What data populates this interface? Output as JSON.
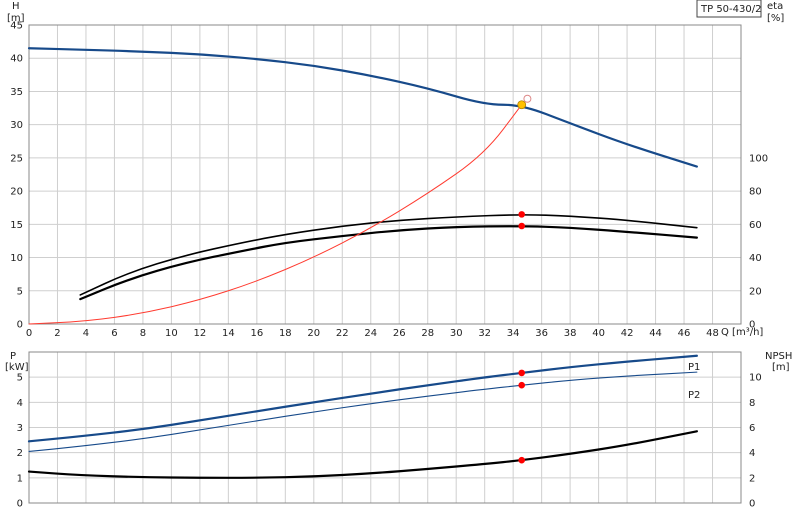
{
  "colors": {
    "head": "#174a8a",
    "efficiency": "#000000",
    "efficiency_upper": "#000000",
    "system": "#ff3b30",
    "power": "#174a8a",
    "npsh": "#000000",
    "grid": "#cfcfcf",
    "operating_point": "#ff0000",
    "system_point": "#ffc000"
  },
  "chart_data": [
    {
      "id": "top",
      "type": "line",
      "title": "TP 50-430/2",
      "xlabel": "Q [m³/h]",
      "ylabel_left_line1": "H",
      "ylabel_left_line2": "[m]",
      "ylabel_right_line1": "eta",
      "ylabel_right_line2": "[%]",
      "xlim": [
        0,
        50
      ],
      "xticks": [
        0,
        2,
        4,
        6,
        8,
        10,
        12,
        14,
        16,
        18,
        20,
        22,
        24,
        26,
        28,
        30,
        32,
        34,
        36,
        38,
        40,
        42,
        44,
        46,
        48
      ],
      "ylim_left": [
        0,
        45
      ],
      "yticks_left": [
        0,
        5,
        10,
        15,
        20,
        25,
        30,
        35,
        40,
        45
      ],
      "ylim_right": [
        0,
        180
      ],
      "yticks_right": [
        0,
        20,
        40,
        60,
        80,
        100
      ],
      "grid": true,
      "series": [
        {
          "key": "head",
          "axis": "left",
          "width": 2.2,
          "x": [
            0,
            3.6,
            8,
            12,
            16,
            20,
            24,
            28,
            32,
            34.6,
            38,
            42,
            46.9
          ],
          "y": [
            41.5,
            41.3,
            41.0,
            40.6,
            39.9,
            38.9,
            37.4,
            35.5,
            33.0,
            33.0,
            30.2,
            27.0,
            23.7
          ]
        },
        {
          "key": "efficiency",
          "axis": "right",
          "width": 2.2,
          "x": [
            3.6,
            7,
            11,
            15,
            18,
            22,
            26,
            30,
            34.6,
            38,
            42,
            46.9
          ],
          "y": [
            15,
            27,
            37,
            44,
            49,
            53,
            56.5,
            58.5,
            59,
            58,
            55.5,
            52
          ]
        },
        {
          "key": "efficiency_upper",
          "axis": "right",
          "width": 1.6,
          "x": [
            3.6,
            7,
            11,
            15,
            18,
            22,
            26,
            30,
            34.6,
            38,
            42,
            46.9
          ],
          "y": [
            17.5,
            31,
            41.5,
            49,
            54,
            59,
            62.5,
            64.5,
            66,
            65,
            62.5,
            58
          ]
        },
        {
          "key": "system",
          "axis": "left",
          "width": 1,
          "x": [
            0,
            4,
            8,
            12,
            16,
            20,
            24,
            28,
            32,
            34.6
          ],
          "y": [
            0,
            0.4,
            1.6,
            3.6,
            6.4,
            10.0,
            14.4,
            19.6,
            25.6,
            33.0
          ]
        }
      ],
      "points": [
        {
          "key": "operating_point",
          "axis": "right",
          "x": 34.6,
          "y": 66
        },
        {
          "key": "operating_point",
          "axis": "right",
          "x": 34.6,
          "y": 59
        },
        {
          "key": "system_point",
          "axis": "left",
          "x": 34.6,
          "y": 33.0
        },
        {
          "key": "open_marker",
          "axis": "left",
          "x": 35.0,
          "y": 33.9
        }
      ]
    },
    {
      "id": "bottom",
      "type": "line",
      "xlim": [
        0,
        50
      ],
      "ylabel_left_line1": "P",
      "ylabel_left_line2": "[kW]",
      "ylabel_right_line1": "NPSH",
      "ylabel_right_line2": "[m]",
      "ylim_left": [
        0,
        6
      ],
      "yticks_left": [
        0,
        1,
        2,
        3,
        4,
        5
      ],
      "ylim_right": [
        0,
        12
      ],
      "yticks_right": [
        0,
        2,
        4,
        6,
        8,
        10
      ],
      "grid": true,
      "series": [
        {
          "key": "power",
          "name": "P1",
          "axis": "left",
          "width": 2.2,
          "x": [
            0,
            3.6,
            8,
            12,
            16,
            20,
            24,
            28,
            32,
            34.6,
            38,
            42,
            46.9
          ],
          "y": [
            2.45,
            2.65,
            2.93,
            3.28,
            3.65,
            4.0,
            4.35,
            4.68,
            4.99,
            5.17,
            5.4,
            5.62,
            5.85
          ]
        },
        {
          "key": "power",
          "name": "P2",
          "axis": "left",
          "width": 1.1,
          "x": [
            0,
            3.6,
            8,
            12,
            16,
            20,
            24,
            28,
            32,
            34.6,
            38,
            42,
            46.9
          ],
          "y": [
            2.05,
            2.25,
            2.55,
            2.9,
            3.27,
            3.62,
            3.95,
            4.25,
            4.52,
            4.68,
            4.88,
            5.05,
            5.2
          ]
        },
        {
          "key": "npsh",
          "axis": "right",
          "width": 2.2,
          "x": [
            0,
            3.6,
            8,
            12,
            16,
            20,
            24,
            28,
            32,
            34.6,
            38,
            42,
            46.9
          ],
          "y": [
            2.5,
            2.2,
            2.05,
            2.0,
            2.0,
            2.1,
            2.35,
            2.7,
            3.1,
            3.4,
            3.9,
            4.6,
            5.7
          ]
        }
      ],
      "points": [
        {
          "key": "operating_point",
          "axis": "left",
          "x": 34.6,
          "y": 5.17
        },
        {
          "key": "operating_point",
          "axis": "left",
          "x": 34.6,
          "y": 4.68
        },
        {
          "key": "operating_point",
          "axis": "right",
          "x": 34.6,
          "y": 3.4
        }
      ]
    }
  ]
}
